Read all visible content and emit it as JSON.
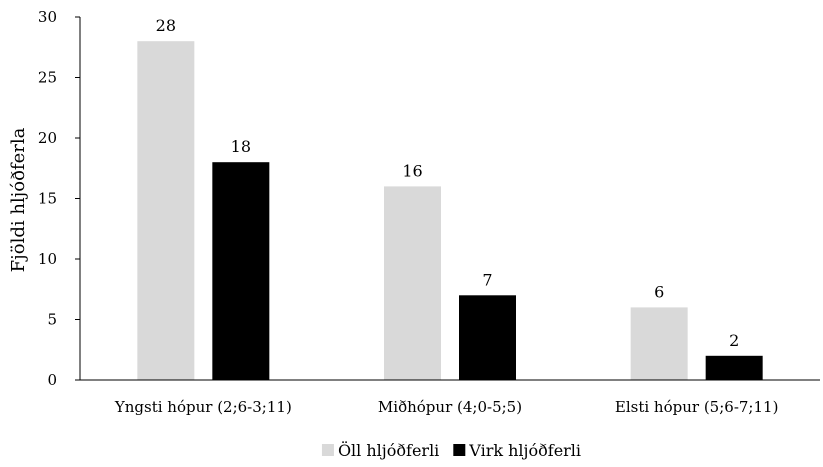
{
  "chart_data": {
    "type": "bar",
    "title": "",
    "xlabel": "",
    "ylabel": "Fjöldi hljóðferla",
    "ylim": [
      0,
      30
    ],
    "yticks": [
      0,
      5,
      10,
      15,
      20,
      25,
      30
    ],
    "ytick_labels": [
      "0",
      "5",
      "10",
      "15",
      "20",
      "25",
      "30"
    ],
    "categories": [
      "Yngsti hópur (2;6-3;11)",
      "Miðhópur (4;0-5;5)",
      "Elsti hópur (5;6-7;11)"
    ],
    "series": [
      {
        "name": "Öll hljóðferli",
        "color": "#d9d9d9",
        "values": [
          28,
          16,
          6
        ],
        "value_labels": [
          "28",
          "16",
          "6"
        ]
      },
      {
        "name": "Virk hljóðferli",
        "color": "#000000",
        "values": [
          18,
          7,
          2
        ],
        "value_labels": [
          "18",
          "7",
          "2"
        ]
      }
    ],
    "grid": false,
    "legend_position": "bottom",
    "data_labels": true
  }
}
